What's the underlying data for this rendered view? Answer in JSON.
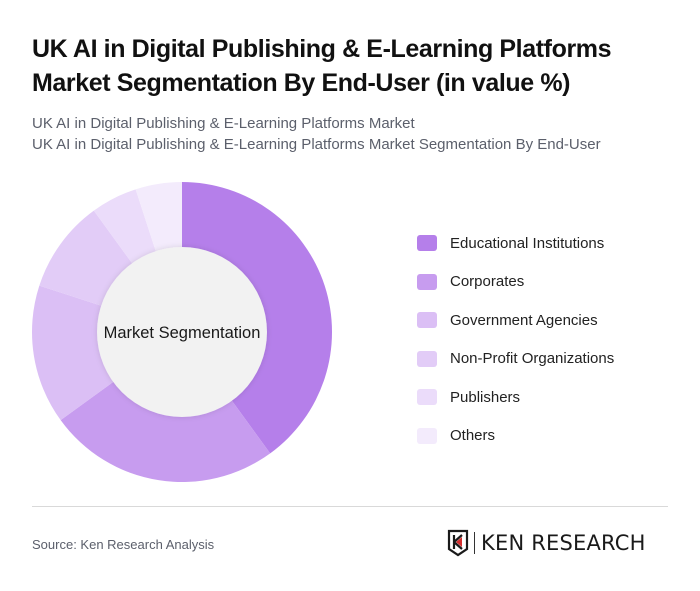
{
  "header": {
    "title": "UK AI in Digital Publishing & E-Learning Platforms Market Segmentation By End-User (in value %)",
    "subtitle_line1": "UK AI in Digital Publishing & E-Learning Platforms Market",
    "subtitle_line2": "UK AI in Digital Publishing & E-Learning Platforms Market Segmentation By End-User"
  },
  "chart_data": {
    "type": "pie",
    "variant": "donut",
    "title": "UK AI in Digital Publishing & E-Learning Platforms Market Segmentation By End-User (in value %)",
    "center_label": "Market Segmentation",
    "categories": [
      "Educational Institutions",
      "Corporates",
      "Government Agencies",
      "Non-Profit Organizations",
      "Publishers",
      "Others"
    ],
    "values": [
      40,
      25,
      15,
      10,
      5,
      5
    ],
    "colors": [
      "#b57fea",
      "#c79cef",
      "#dbbff5",
      "#e2ccf7",
      "#ebdcfa",
      "#f3ebfc"
    ],
    "legend_position": "right",
    "unit": "%"
  },
  "legend": {
    "items": [
      {
        "label": "Educational Institutions",
        "color": "#b57fea"
      },
      {
        "label": "Corporates",
        "color": "#c79cef"
      },
      {
        "label": "Government Agencies",
        "color": "#dbbff5"
      },
      {
        "label": "Non-Profit Organizations",
        "color": "#e2ccf7"
      },
      {
        "label": "Publishers",
        "color": "#ebdcfa"
      },
      {
        "label": "Others",
        "color": "#f3ebfc"
      }
    ]
  },
  "footer": {
    "source": "Source: Ken Research Analysis",
    "logo_text": "KEN RESEARCH"
  }
}
